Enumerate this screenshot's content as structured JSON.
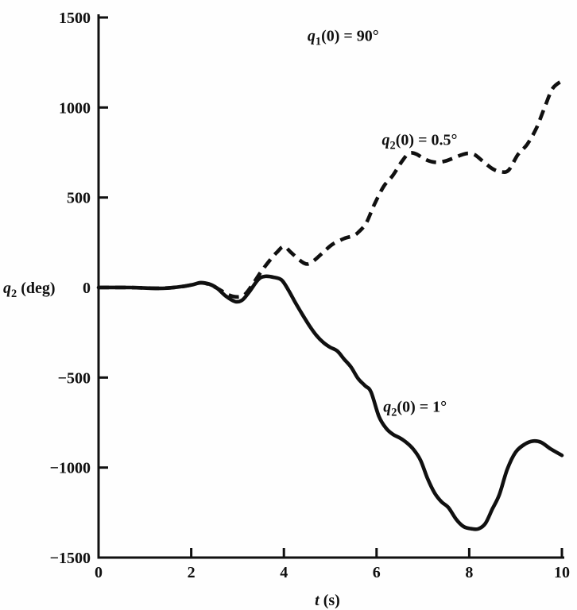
{
  "figure": {
    "background": "#fefefe",
    "ink_color": "#101010"
  },
  "chart_data": {
    "type": "line",
    "title": "",
    "xlabel": "t (s)",
    "ylabel": "q2 (deg)",
    "xlabel_parts": [
      {
        "t": "t",
        "i": true
      },
      {
        "t": " (s)"
      }
    ],
    "ylabel_parts": [
      {
        "t": "q",
        "i": true
      },
      {
        "t": "2",
        "sub": true
      },
      {
        "t": " (deg)"
      }
    ],
    "xlim": [
      0,
      10
    ],
    "ylim": [
      -1500,
      1500
    ],
    "x_ticks": [
      0,
      2,
      4,
      6,
      8,
      10
    ],
    "x_tick_labels": [
      "0",
      "2",
      "4",
      "6",
      "8",
      "10"
    ],
    "y_ticks": [
      1500,
      1000,
      500,
      0,
      -500,
      -1000,
      -1500
    ],
    "y_tick_labels": [
      "1500",
      "1000",
      "500",
      "0",
      "−500",
      "−1000",
      "−1500"
    ],
    "grid": false,
    "legend_position": "inline-annotations",
    "annotations": [
      {
        "id": "initial-condition-q1",
        "x": 5.28,
        "y": 1400,
        "anchor": "middle",
        "parts": [
          {
            "t": "q",
            "i": true
          },
          {
            "t": "1",
            "sub": true
          },
          {
            "t": "(0) = 90°"
          }
        ]
      },
      {
        "id": "series-label-dashed",
        "x": 6.93,
        "y": 822,
        "anchor": "middle",
        "parts": [
          {
            "t": "q",
            "i": true
          },
          {
            "t": "2",
            "sub": true
          },
          {
            "t": "(0) = 0.5°"
          }
        ]
      },
      {
        "id": "series-label-solid",
        "x": 6.83,
        "y": -660,
        "anchor": "middle",
        "parts": [
          {
            "t": "q",
            "i": true
          },
          {
            "t": "2",
            "sub": true
          },
          {
            "t": "(0) = 1°"
          }
        ]
      }
    ],
    "series": [
      {
        "name": "q2(0) = 1°",
        "style": "solid",
        "points": [
          [
            0,
            0
          ],
          [
            0.7,
            0
          ],
          [
            1.3,
            -5
          ],
          [
            1.7,
            2
          ],
          [
            2.0,
            14
          ],
          [
            2.2,
            27
          ],
          [
            2.38,
            20
          ],
          [
            2.55,
            -2
          ],
          [
            2.75,
            -48
          ],
          [
            2.95,
            -78
          ],
          [
            3.1,
            -70
          ],
          [
            3.25,
            -25
          ],
          [
            3.45,
            45
          ],
          [
            3.6,
            62
          ],
          [
            3.78,
            57
          ],
          [
            3.95,
            42
          ],
          [
            4.1,
            -15
          ],
          [
            4.25,
            -85
          ],
          [
            4.4,
            -150
          ],
          [
            4.55,
            -212
          ],
          [
            4.7,
            -265
          ],
          [
            4.85,
            -305
          ],
          [
            5.0,
            -332
          ],
          [
            5.15,
            -352
          ],
          [
            5.3,
            -398
          ],
          [
            5.45,
            -442
          ],
          [
            5.6,
            -505
          ],
          [
            5.75,
            -545
          ],
          [
            5.88,
            -580
          ],
          [
            6.05,
            -715
          ],
          [
            6.2,
            -780
          ],
          [
            6.35,
            -815
          ],
          [
            6.5,
            -835
          ],
          [
            6.65,
            -862
          ],
          [
            6.8,
            -900
          ],
          [
            6.95,
            -960
          ],
          [
            7.1,
            -1060
          ],
          [
            7.25,
            -1140
          ],
          [
            7.4,
            -1190
          ],
          [
            7.55,
            -1222
          ],
          [
            7.72,
            -1288
          ],
          [
            7.88,
            -1328
          ],
          [
            8.05,
            -1340
          ],
          [
            8.2,
            -1340
          ],
          [
            8.35,
            -1310
          ],
          [
            8.5,
            -1230
          ],
          [
            8.65,
            -1150
          ],
          [
            8.82,
            -1010
          ],
          [
            9.0,
            -915
          ],
          [
            9.2,
            -870
          ],
          [
            9.38,
            -853
          ],
          [
            9.55,
            -860
          ],
          [
            9.75,
            -895
          ],
          [
            10,
            -932
          ]
        ]
      },
      {
        "name": "q2(0) = 0.5°",
        "style": "dashed",
        "points": [
          [
            0,
            0
          ],
          [
            0.7,
            0
          ],
          [
            1.3,
            -4
          ],
          [
            1.7,
            2
          ],
          [
            2.0,
            14
          ],
          [
            2.2,
            26
          ],
          [
            2.4,
            16
          ],
          [
            2.6,
            -10
          ],
          [
            2.8,
            -40
          ],
          [
            3.0,
            -52
          ],
          [
            3.15,
            -40
          ],
          [
            3.3,
            8
          ],
          [
            3.5,
            85
          ],
          [
            3.7,
            152
          ],
          [
            3.85,
            196
          ],
          [
            4.0,
            228
          ],
          [
            4.15,
            196
          ],
          [
            4.35,
            150
          ],
          [
            4.5,
            130
          ],
          [
            4.65,
            150
          ],
          [
            4.85,
            196
          ],
          [
            5.05,
            240
          ],
          [
            5.3,
            272
          ],
          [
            5.5,
            288
          ],
          [
            5.62,
            310
          ],
          [
            5.78,
            360
          ],
          [
            5.95,
            460
          ],
          [
            6.15,
            560
          ],
          [
            6.35,
            622
          ],
          [
            6.55,
            702
          ],
          [
            6.7,
            745
          ],
          [
            6.85,
            742
          ],
          [
            7.05,
            712
          ],
          [
            7.25,
            696
          ],
          [
            7.45,
            700
          ],
          [
            7.65,
            718
          ],
          [
            7.85,
            738
          ],
          [
            7.98,
            745
          ],
          [
            8.12,
            737
          ],
          [
            8.3,
            700
          ],
          [
            8.5,
            660
          ],
          [
            8.68,
            643
          ],
          [
            8.85,
            652
          ],
          [
            9.05,
            738
          ],
          [
            9.25,
            795
          ],
          [
            9.45,
            885
          ],
          [
            9.62,
            995
          ],
          [
            9.8,
            1105
          ],
          [
            10,
            1148
          ]
        ]
      }
    ]
  }
}
